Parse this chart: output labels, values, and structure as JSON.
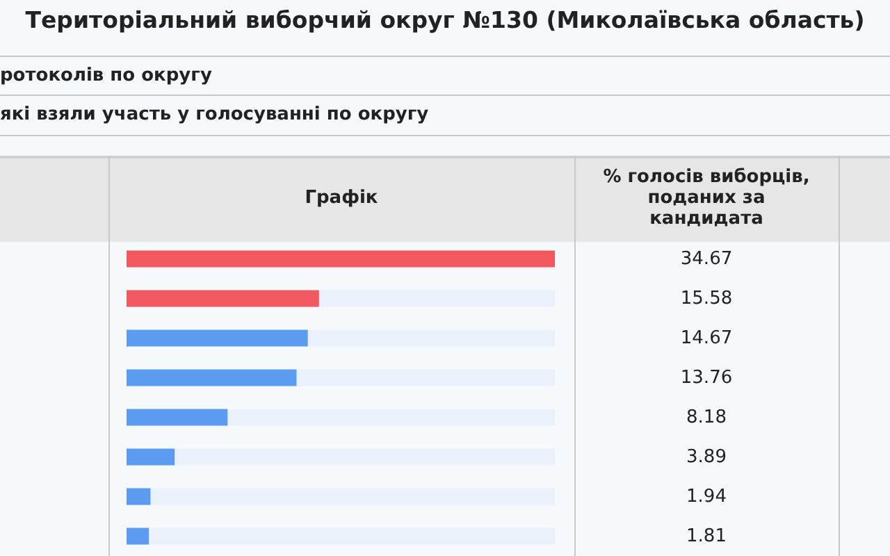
{
  "chart_data": {
    "type": "bar",
    "orientation": "horizontal",
    "title": "Територіальний виборчий округ №130 (Миколаївська область)",
    "annotations": [
      "ротоколів по округу",
      "які взяли участь у голосуванні по округу",
      "% голосів виборців, поданих за кандидата"
    ],
    "xlabel": "Графік",
    "categories": [
      null,
      null,
      null,
      null,
      null,
      null,
      null,
      null
    ],
    "values": [
      34.67,
      15.58,
      14.67,
      13.76,
      8.18,
      3.89,
      1.94,
      1.81
    ],
    "colors": [
      "#f2595f",
      "#f2595f",
      "#5b9cf0",
      "#5b9cf0",
      "#5b9cf0",
      "#5b9cf0",
      "#5b9cf0",
      "#5b9cf0"
    ],
    "data_labels": true
  }
}
